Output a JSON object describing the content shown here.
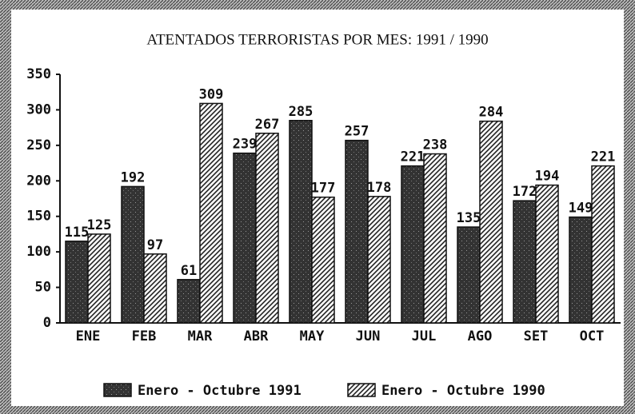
{
  "chart_data": {
    "type": "bar",
    "title": "ATENTADOS TERRORISTAS POR MES: 1991 / 1990",
    "categories": [
      "ENE",
      "FEB",
      "MAR",
      "ABR",
      "MAY",
      "JUN",
      "JUL",
      "AGO",
      "SET",
      "OCT"
    ],
    "series": [
      {
        "name": "Enero - Octubre 1991",
        "color": "#333333",
        "fill_style": "solid",
        "values": [
          115,
          192,
          61,
          239,
          285,
          257,
          221,
          135,
          172,
          149
        ]
      },
      {
        "name": "Enero - Octubre 1990",
        "color": "#222222",
        "fill_style": "hatch",
        "values": [
          125,
          97,
          309,
          267,
          177,
          178,
          238,
          284,
          194,
          221
        ]
      }
    ],
    "ylim": [
      0,
      350
    ],
    "yticks": [
      0,
      50,
      100,
      150,
      200,
      250,
      300,
      350
    ],
    "grid": false,
    "legend": "bottom"
  }
}
